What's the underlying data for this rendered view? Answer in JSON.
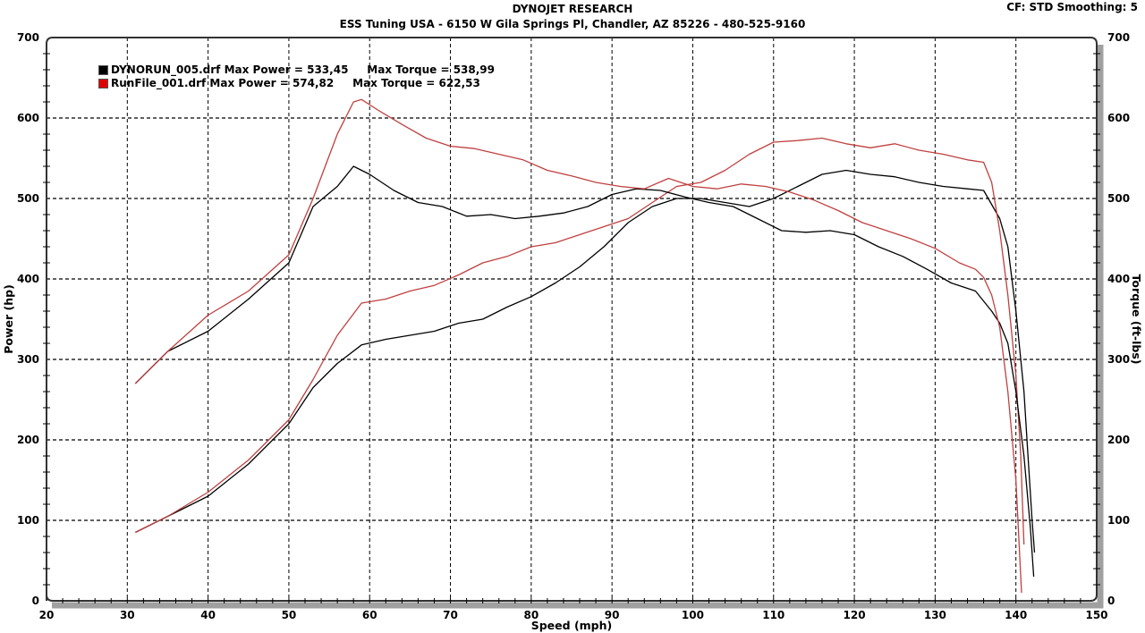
{
  "header": {
    "title": "DYNOJET RESEARCH",
    "subtitle": "ESS Tuning USA - 6150 W Gila Springs Pl, Chandler, AZ 85226 - 480-525-9160",
    "correction_info": "CF: STD  Smoothing: 5"
  },
  "legend": {
    "items": [
      {
        "file": "DYNORUN_005.drf",
        "text": "DYNORUN_005.drf Max Power = 533,45     Max Torque = 538,99",
        "color": "#000000"
      },
      {
        "file": "RunFile_001.drf",
        "text": "RunFile_001.drf Max Power = 574,82     Max Torque = 622,53",
        "color": "#e00000"
      }
    ]
  },
  "axes": {
    "xlabel": "Speed (mph)",
    "ylabel_left": "Power (hp)",
    "ylabel_right": "Torque (ft-lbs)",
    "x_ticks": [
      "20",
      "30",
      "40",
      "50",
      "60",
      "70",
      "80",
      "90",
      "100",
      "110",
      "120",
      "130",
      "140",
      "150"
    ],
    "y_ticks": [
      "0",
      "100",
      "200",
      "300",
      "400",
      "500",
      "600",
      "700"
    ]
  },
  "chart_data": {
    "type": "line",
    "title": "DYNOJET RESEARCH",
    "subtitle": "ESS Tuning USA - 6150 W Gila Springs Pl, Chandler, AZ 85226 - 480-525-9160",
    "xlabel": "Speed (mph)",
    "ylabel": "Power (hp)",
    "ylabel_right": "Torque (ft-lbs)",
    "xlim": [
      20,
      150
    ],
    "ylim": [
      0,
      700
    ],
    "ylim_right": [
      0,
      700
    ],
    "grid": true,
    "legend_position": "top-left",
    "annotations": [
      "CF: STD  Smoothing: 5"
    ],
    "series": [
      {
        "name": "DYNORUN_005.drf Power (hp)",
        "color": "#000000",
        "axis": "left",
        "max": 533.45,
        "x": [
          31,
          35,
          40,
          45,
          50,
          53,
          56,
          59,
          62,
          65,
          68,
          71,
          74,
          77,
          80,
          83,
          86,
          89,
          92,
          95,
          98,
          101,
          104,
          107,
          110,
          113,
          116,
          119,
          122,
          125,
          128,
          131,
          134,
          136,
          138,
          139,
          140,
          141,
          141.5,
          142,
          142.3
        ],
        "y": [
          85,
          105,
          130,
          170,
          220,
          265,
          295,
          318,
          325,
          330,
          335,
          345,
          350,
          365,
          378,
          395,
          415,
          440,
          470,
          490,
          500,
          500,
          495,
          490,
          500,
          515,
          530,
          535,
          530,
          527,
          520,
          515,
          512,
          510,
          475,
          440,
          360,
          260,
          180,
          100,
          60
        ]
      },
      {
        "name": "RunFile_001.drf Power (hp)",
        "color": "#c04040",
        "axis": "left",
        "max": 574.82,
        "x": [
          31,
          35,
          40,
          45,
          50,
          53,
          56,
          59,
          62,
          65,
          68,
          71,
          74,
          77,
          80,
          83,
          86,
          89,
          92,
          95,
          98,
          101,
          104,
          107,
          110,
          113,
          116,
          119,
          122,
          125,
          128,
          131,
          134,
          136,
          137,
          138,
          139,
          140,
          140.6,
          141
        ],
        "y": [
          85,
          105,
          135,
          175,
          225,
          275,
          330,
          370,
          375,
          385,
          392,
          405,
          420,
          428,
          440,
          445,
          455,
          465,
          475,
          495,
          515,
          520,
          535,
          555,
          570,
          572,
          575,
          568,
          563,
          568,
          560,
          555,
          548,
          545,
          520,
          460,
          380,
          280,
          180,
          70
        ]
      },
      {
        "name": "DYNORUN_005.drf Torque (ft-lbs)",
        "color": "#000000",
        "axis": "right",
        "max": 538.99,
        "x": [
          31,
          35,
          40,
          45,
          50,
          53,
          56,
          58,
          60,
          63,
          66,
          69,
          72,
          75,
          78,
          81,
          84,
          87,
          90,
          93,
          96,
          99,
          102,
          105,
          108,
          111,
          114,
          117,
          120,
          123,
          126,
          129,
          132,
          135,
          137,
          138,
          139,
          140,
          141,
          141.8,
          142.2
        ],
        "y": [
          270,
          310,
          335,
          375,
          420,
          490,
          515,
          540,
          530,
          510,
          495,
          490,
          478,
          480,
          475,
          478,
          482,
          490,
          505,
          512,
          510,
          502,
          495,
          490,
          475,
          460,
          458,
          460,
          455,
          440,
          428,
          412,
          395,
          385,
          360,
          345,
          320,
          260,
          180,
          90,
          30
        ]
      },
      {
        "name": "RunFile_001.drf Torque (ft-lbs)",
        "color": "#c04040",
        "axis": "right",
        "max": 622.53,
        "x": [
          31,
          35,
          40,
          45,
          50,
          53,
          56,
          58,
          59,
          61,
          64,
          67,
          70,
          73,
          76,
          79,
          82,
          85,
          88,
          91,
          94,
          97,
          100,
          103,
          106,
          109,
          112,
          115,
          118,
          121,
          124,
          127,
          130,
          133,
          135,
          136,
          137,
          138,
          139,
          140,
          140.7
        ],
        "y": [
          270,
          310,
          355,
          385,
          430,
          500,
          580,
          620,
          623,
          610,
          592,
          575,
          565,
          562,
          555,
          548,
          535,
          528,
          520,
          515,
          512,
          525,
          515,
          512,
          518,
          515,
          508,
          498,
          485,
          470,
          460,
          450,
          438,
          420,
          412,
          402,
          380,
          340,
          260,
          150,
          10
        ]
      }
    ]
  }
}
